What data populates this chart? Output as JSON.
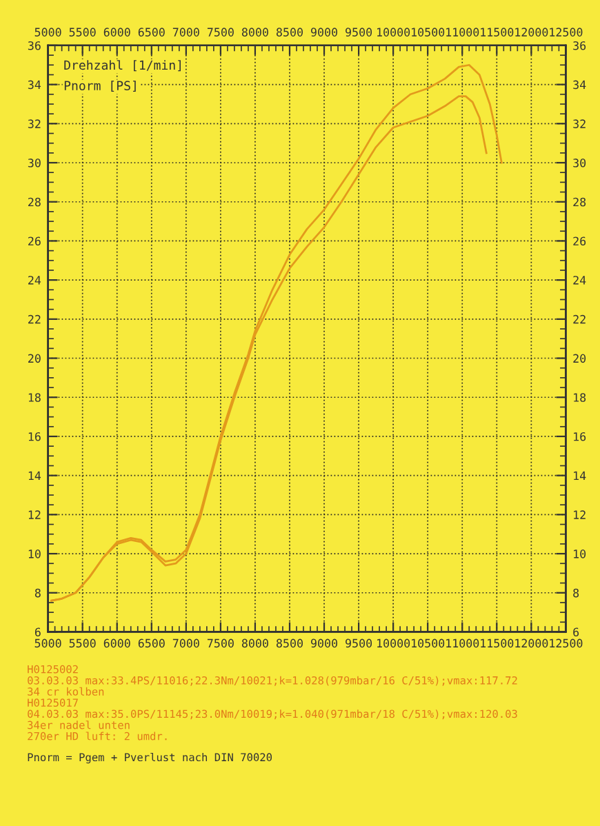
{
  "chart_data": {
    "type": "line",
    "xlabel": "Drehzahl [1/min]",
    "ylabel": "Pnorm [PS]",
    "series": [
      {
        "color": "#e39a1c",
        "x": [
          5050,
          5200,
          5400,
          5600,
          5800,
          6000,
          6200,
          6350,
          6500,
          6700,
          6850,
          7000,
          7200,
          7500,
          7700,
          7900,
          8000,
          8250,
          8500,
          8750,
          9000,
          9250,
          9500,
          9750,
          10000,
          10250,
          10500,
          10750,
          10950,
          11050,
          11150,
          11250,
          11350
        ],
        "values": [
          7.6,
          7.7,
          8.0,
          8.8,
          9.8,
          10.5,
          10.7,
          10.6,
          10.1,
          9.4,
          9.5,
          10.0,
          11.8,
          15.8,
          18.0,
          20.0,
          21.2,
          23.0,
          24.6,
          25.7,
          26.7,
          28.0,
          29.4,
          30.8,
          31.8,
          32.1,
          32.4,
          32.9,
          33.4,
          33.4,
          33.1,
          32.3,
          30.5
        ]
      },
      {
        "color": "#e39a1c",
        "x": [
          5050,
          5200,
          5400,
          5600,
          5800,
          6000,
          6200,
          6350,
          6500,
          6700,
          6850,
          7000,
          7200,
          7500,
          7700,
          7900,
          8000,
          8250,
          8500,
          8750,
          9000,
          9250,
          9500,
          9750,
          10000,
          10250,
          10500,
          10750,
          10950,
          11100,
          11250,
          11400,
          11500,
          11570
        ],
        "values": [
          7.6,
          7.7,
          8.0,
          8.8,
          9.8,
          10.6,
          10.8,
          10.7,
          10.2,
          9.6,
          9.7,
          10.2,
          12.0,
          16.0,
          18.2,
          20.2,
          21.4,
          23.5,
          25.3,
          26.6,
          27.6,
          28.9,
          30.2,
          31.7,
          32.8,
          33.5,
          33.8,
          34.3,
          34.9,
          35.0,
          34.5,
          33.0,
          31.4,
          30.0
        ]
      }
    ],
    "xlim": [
      5000,
      12500
    ],
    "xticks": [
      5000,
      5500,
      6000,
      6500,
      7000,
      7500,
      8000,
      8500,
      9000,
      9500,
      10000,
      10500,
      11000,
      11500,
      12000,
      12500
    ],
    "x2lim": [
      5000,
      12500
    ],
    "x2ticks": [
      5000,
      5500,
      6000,
      6500,
      7000,
      7500,
      8000,
      8500,
      9000,
      9500,
      10000,
      10500,
      11000,
      11500,
      12000,
      12500
    ],
    "ylim": [
      6,
      36
    ],
    "yticks": [
      6,
      8,
      10,
      12,
      14,
      16,
      18,
      20,
      22,
      24,
      26,
      28,
      30,
      32,
      34,
      36
    ],
    "y2lim": [
      6,
      36
    ],
    "y2ticks": [
      6,
      8,
      10,
      12,
      14,
      16,
      18,
      20,
      22,
      24,
      26,
      28,
      30,
      32,
      34,
      36
    ],
    "grid": true,
    "line_style": "solid",
    "annotations": [
      "H0125002",
      "03.03.03 max:33.4PS/11016;22.3Nm/10021;k=1.028(979mbar/16 C/51%);vmax:117.72",
      "34 cr kolben",
      "H0125017",
      "04.03.03 max:35.0PS/11145;23.0Nm/10019;k=1.040(971mbar/18 C/51%);vmax:120.03",
      "34er nadel unten",
      "270er HD luft: 2 umdr.",
      "Pnorm = Pgem + Pverlust nach DIN 70020"
    ]
  }
}
